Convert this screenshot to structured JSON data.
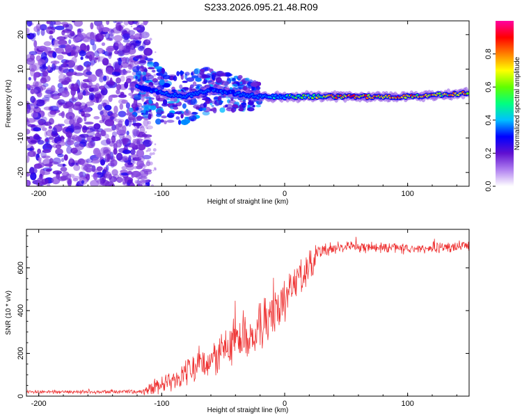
{
  "figure": {
    "title": "S233.2026.095.21.48.R09"
  },
  "chart_data": [
    {
      "type": "heatmap",
      "title": "S233.2026.095.21.48.R09",
      "xlabel": "Height of straight line (km)",
      "ylabel": "Frequency (Hz)",
      "xlim": [
        -210,
        150
      ],
      "ylim": [
        -24,
        24
      ],
      "xticks": [
        -200,
        -100,
        0,
        100
      ],
      "yticks": [
        -20,
        -10,
        0,
        10,
        20
      ],
      "colorbar": {
        "label": "Normalized spectral amplitude",
        "range": [
          0.0,
          1.0
        ],
        "ticks": [
          0.0,
          0.2,
          0.4,
          0.6,
          0.8
        ],
        "colormap": [
          "#ffffff",
          "#b080f0",
          "#6010d0",
          "#0000ff",
          "#00c0ff",
          "#00ff80",
          "#60ff00",
          "#ffff00",
          "#ff8000",
          "#ff0000",
          "#ff00a0"
        ]
      },
      "ridge": {
        "description": "narrow high-amplitude band",
        "x": [
          -120,
          -100,
          -80,
          -60,
          -40,
          -20,
          0,
          50,
          100,
          150
        ],
        "frequency": [
          5,
          3,
          2,
          4,
          3,
          2,
          2,
          2,
          2,
          3
        ],
        "amplitude": [
          0.3,
          0.3,
          0.35,
          0.3,
          0.3,
          0.45,
          0.6,
          0.95,
          0.9,
          0.85
        ]
      }
    },
    {
      "type": "line",
      "xlabel": "Height of straight line (km)",
      "ylabel": "SNR (10 * v/v)",
      "xlim": [
        -210,
        150
      ],
      "ylim": [
        0,
        780
      ],
      "xticks": [
        -200,
        -100,
        0,
        100
      ],
      "yticks": [
        0,
        200,
        400,
        600
      ],
      "series": [
        {
          "name": "SNR",
          "color": "#ee3333",
          "envelope_x": [
            -210,
            -120,
            -110,
            -100,
            -80,
            -60,
            -40,
            -20,
            -10,
            0,
            10,
            20,
            30,
            50,
            100,
            150
          ],
          "envelope_y": [
            20,
            20,
            30,
            50,
            110,
            170,
            250,
            320,
            380,
            440,
            530,
            600,
            680,
            700,
            690,
            700
          ],
          "swing": [
            10,
            10,
            30,
            50,
            80,
            110,
            150,
            160,
            150,
            130,
            110,
            80,
            40,
            30,
            30,
            30
          ]
        }
      ]
    }
  ]
}
